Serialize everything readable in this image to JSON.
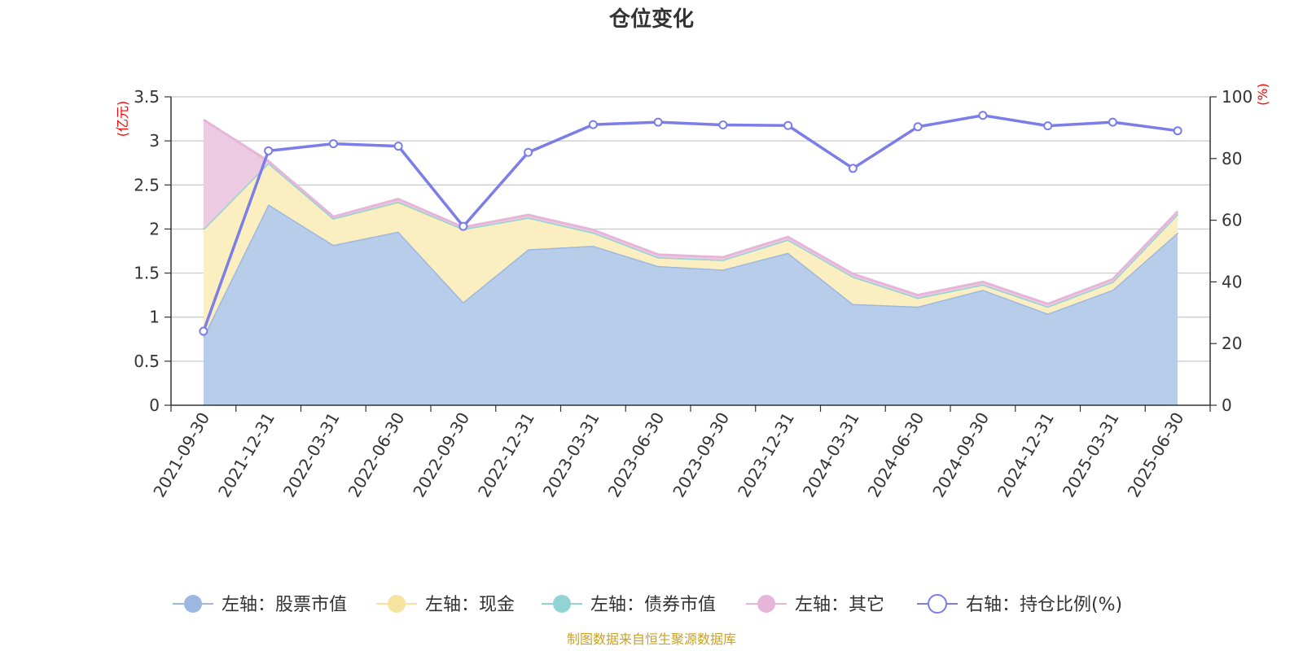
{
  "chart_data": {
    "type": "area",
    "title": "仓位变化",
    "left_unit": "(亿元)",
    "right_unit": "(%)",
    "categories": [
      "2021-09-30",
      "2021-12-31",
      "2022-03-31",
      "2022-06-30",
      "2022-09-30",
      "2022-12-31",
      "2023-03-31",
      "2023-06-30",
      "2023-09-30",
      "2023-12-31",
      "2024-03-31",
      "2024-06-30",
      "2024-09-30",
      "2024-12-31",
      "2025-03-31",
      "2025-06-30"
    ],
    "left_ylim": [
      0,
      3.5
    ],
    "left_ticks": [
      "0",
      "0.5",
      "1",
      "1.5",
      "2",
      "2.5",
      "3",
      "3.5"
    ],
    "right_ylim": [
      0,
      100
    ],
    "right_ticks": [
      "0",
      "20",
      "40",
      "60",
      "80",
      "100"
    ],
    "grid": true,
    "legend_position": "bottom",
    "series": [
      {
        "name": "左轴：股票市值",
        "axis": "left",
        "kind": "stacked-area",
        "color": "#9db8e0",
        "fill": "#b8cdea",
        "values": [
          0.78,
          2.28,
          1.82,
          1.97,
          1.17,
          1.77,
          1.81,
          1.58,
          1.54,
          1.73,
          1.15,
          1.12,
          1.31,
          1.04,
          1.31,
          1.96
        ]
      },
      {
        "name": "左轴：现金",
        "axis": "left",
        "kind": "stacked-area",
        "color": "#f6e3a0",
        "fill": "#fbefc2",
        "values": [
          1.22,
          0.47,
          0.3,
          0.33,
          0.83,
          0.36,
          0.15,
          0.1,
          0.11,
          0.15,
          0.31,
          0.1,
          0.06,
          0.08,
          0.09,
          0.21
        ]
      },
      {
        "name": "左轴：债券市值",
        "axis": "left",
        "kind": "stacked-area",
        "color": "#92d3d3",
        "fill": "#bfe5e5",
        "values": [
          0,
          0,
          0,
          0.01,
          0,
          0,
          0,
          0,
          0,
          0,
          0,
          0,
          0,
          0,
          0,
          0
        ]
      },
      {
        "name": "左轴：其它",
        "axis": "left",
        "kind": "stacked-area",
        "color": "#e7b5d8",
        "fill": "#eccae2",
        "values": [
          1.24,
          0.02,
          0.02,
          0.03,
          0.02,
          0.03,
          0.03,
          0.03,
          0.03,
          0.03,
          0.03,
          0.03,
          0.03,
          0.03,
          0.03,
          0.03
        ]
      },
      {
        "name": "右轴：持仓比例(%)",
        "axis": "right",
        "kind": "line",
        "color": "#7b7de8",
        "values": [
          24,
          82.5,
          84.8,
          84,
          58,
          82,
          91,
          91.8,
          90.9,
          90.7,
          76.8,
          90.3,
          94,
          90.6,
          91.8,
          89
        ]
      }
    ],
    "source": "制图数据来自恒生聚源数据库"
  }
}
